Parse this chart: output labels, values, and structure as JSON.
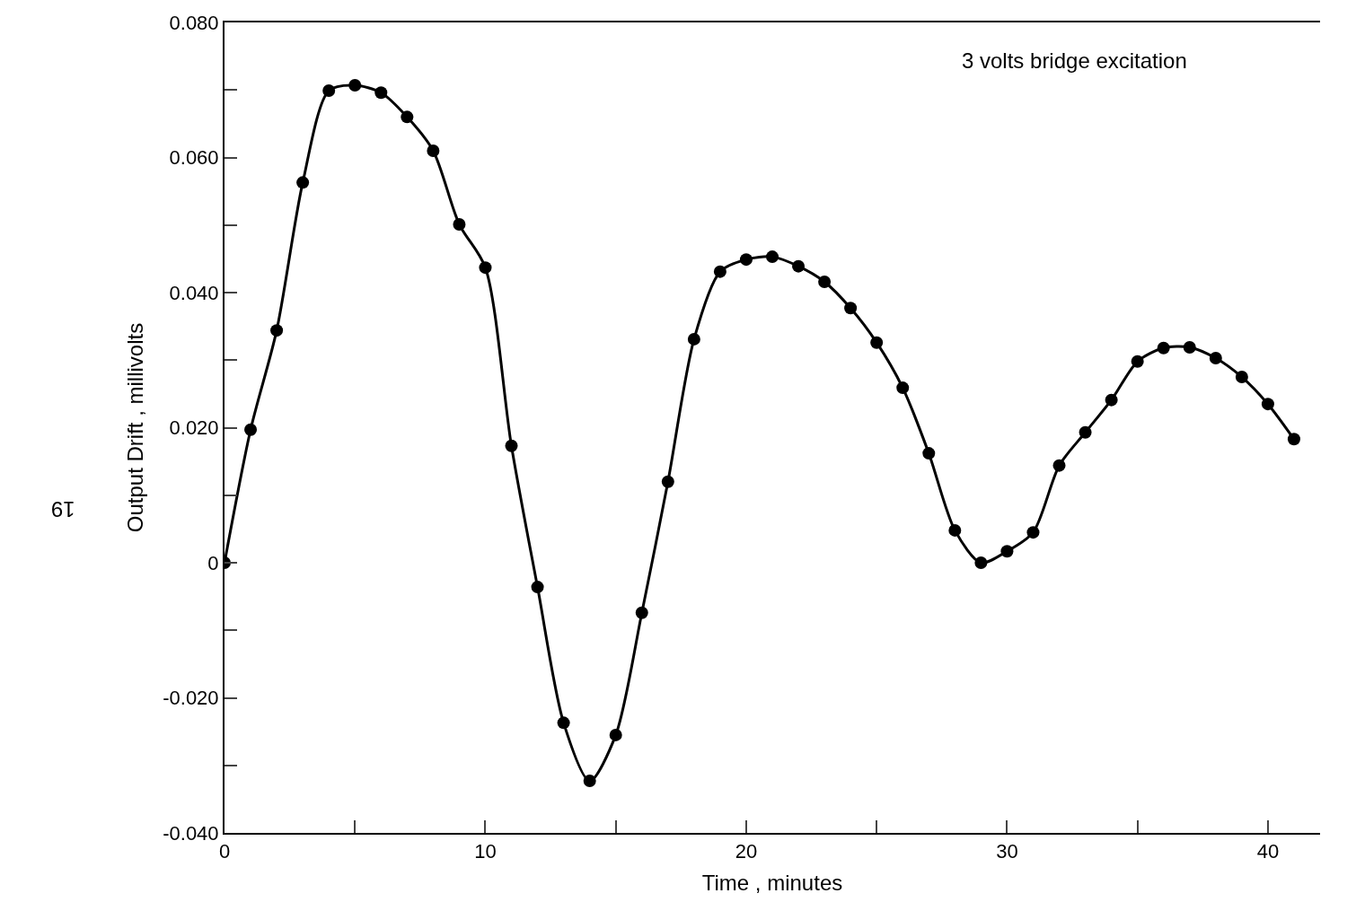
{
  "chart_data": {
    "type": "line",
    "xlabel": "Time , minutes",
    "ylabel": "Output Drift , millivolts",
    "annotations": [
      "3 volts bridge excitation",
      "19"
    ],
    "x": [
      0,
      1,
      2,
      3,
      4,
      5,
      6,
      7,
      8,
      9,
      10,
      11,
      12,
      13,
      14,
      15,
      16,
      17,
      18,
      19,
      20,
      21,
      22,
      23,
      24,
      25,
      26,
      27,
      28,
      29,
      30,
      31,
      32,
      33,
      34,
      35,
      36,
      37,
      38,
      39,
      40,
      41
    ],
    "series": [
      {
        "color": "#000000",
        "values": [
          0,
          0.0197,
          0.0344,
          0.0563,
          0.0699,
          0.0707,
          0.0696,
          0.066,
          0.061,
          0.0501,
          0.0437,
          0.0173,
          -0.0036,
          -0.0237,
          -0.0323,
          -0.0255,
          -0.0074,
          0.012,
          0.0331,
          0.0431,
          0.0449,
          0.0453,
          0.0439,
          0.0416,
          0.0377,
          0.0326,
          0.0259,
          0.0162,
          0.0048,
          0.0,
          0.0017,
          0.0045,
          0.0144,
          0.0193,
          0.0241,
          0.0298,
          0.0318,
          0.0319,
          0.0303,
          0.0275,
          0.0235,
          0.0183
        ]
      }
    ],
    "xlim": [
      0,
      42
    ],
    "ylim": [
      -0.04,
      0.08
    ],
    "xticks": [
      0,
      {
        "value": 5,
        "label": null
      },
      10,
      {
        "value": 15,
        "label": null
      },
      20,
      {
        "value": 25,
        "label": null
      },
      30,
      {
        "value": 35,
        "label": null
      },
      40
    ],
    "yticks": [
      {
        "value": -0.04,
        "label": "-0.040"
      },
      {
        "value": -0.03,
        "label": null
      },
      {
        "value": -0.02,
        "label": "-0.020"
      },
      {
        "value": -0.01,
        "label": null
      },
      0,
      {
        "value": 0.01,
        "label": null
      },
      {
        "value": 0.02,
        "label": "0.020"
      },
      {
        "value": 0.03,
        "label": null
      },
      {
        "value": 0.04,
        "label": "0.040"
      },
      {
        "value": 0.05,
        "label": null
      },
      {
        "value": 0.06,
        "label": "0.060"
      },
      {
        "value": 0.07,
        "label": null
      },
      {
        "value": 0.08,
        "label": "0.080"
      }
    ],
    "marker": "circle",
    "line_style": "solid"
  }
}
